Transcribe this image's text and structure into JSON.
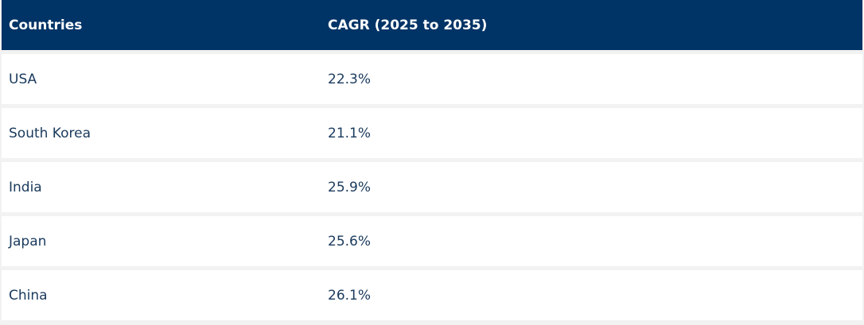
{
  "table": {
    "headers": {
      "country": "Countries",
      "cagr": "CAGR (2025 to 2035)"
    },
    "rows": [
      {
        "country": "USA",
        "cagr": "22.3%"
      },
      {
        "country": "South Korea",
        "cagr": "21.1%"
      },
      {
        "country": "India",
        "cagr": "25.9%"
      },
      {
        "country": "Japan",
        "cagr": "25.6%"
      },
      {
        "country": "China",
        "cagr": "26.1%"
      }
    ]
  },
  "chart_data": {
    "type": "table",
    "columns": [
      "Countries",
      "CAGR (2025 to 2035)"
    ],
    "rows": [
      [
        "USA",
        "22.3%"
      ],
      [
        "South Korea",
        "21.1%"
      ],
      [
        "India",
        "25.9%"
      ],
      [
        "Japan",
        "25.6%"
      ],
      [
        "China",
        "26.1%"
      ]
    ]
  },
  "colors": {
    "header_bg": "#003366",
    "header_text": "#ffffff",
    "row_bg": "#ffffff",
    "row_text": "#1a3a5c",
    "separator": "#f2f2f2"
  }
}
